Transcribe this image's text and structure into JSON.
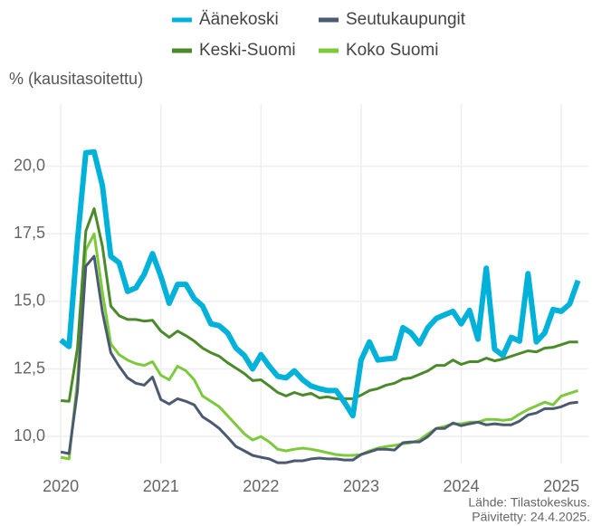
{
  "chart_data": {
    "type": "line",
    "y_label": "% (kausitasoitettu)",
    "source": [
      "Lähde: Tilastokeskus.",
      "Päivitetty: 24.4.2025."
    ],
    "x": [
      2020,
      2020.083,
      2020.167,
      2020.25,
      2020.333,
      2020.417,
      2020.5,
      2020.583,
      2020.667,
      2020.75,
      2020.833,
      2020.917,
      2021,
      2021.083,
      2021.167,
      2021.25,
      2021.333,
      2021.417,
      2021.5,
      2021.583,
      2021.667,
      2021.75,
      2021.833,
      2021.917,
      2022,
      2022.083,
      2022.167,
      2022.25,
      2022.333,
      2022.417,
      2022.5,
      2022.583,
      2022.667,
      2022.75,
      2022.833,
      2022.917,
      2023,
      2023.083,
      2023.167,
      2023.25,
      2023.333,
      2023.417,
      2023.5,
      2023.583,
      2023.667,
      2023.75,
      2023.833,
      2023.917,
      2024,
      2024.083,
      2024.167,
      2024.25,
      2024.333,
      2024.417,
      2024.5,
      2024.583,
      2024.667,
      2024.75,
      2024.833,
      2024.917,
      2025,
      2025.083,
      2025.167
    ],
    "series": [
      {
        "name": "Äänekoski",
        "color": "#00b2d9",
        "values": [
          13.57,
          13.33,
          17.27,
          20.5,
          20.53,
          19.27,
          16.67,
          16.43,
          15.37,
          15.5,
          16.0,
          16.77,
          15.93,
          14.93,
          15.63,
          15.63,
          15.1,
          14.83,
          14.17,
          14.1,
          13.83,
          13.27,
          13.0,
          12.5,
          13.03,
          12.6,
          12.23,
          12.17,
          12.43,
          12.1,
          11.87,
          11.77,
          11.7,
          11.7,
          11.27,
          10.77,
          12.83,
          13.5,
          12.83,
          12.87,
          12.9,
          14.03,
          13.83,
          13.43,
          14.03,
          14.37,
          14.5,
          14.63,
          14.17,
          14.67,
          13.6,
          16.23,
          13.23,
          13.0,
          13.67,
          13.53,
          16.03,
          13.5,
          13.83,
          14.7,
          14.63,
          14.9,
          15.77
        ]
      },
      {
        "name": "Seutukaupungit",
        "color": "#4b5a70",
        "values": [
          9.43,
          9.37,
          11.7,
          16.3,
          16.67,
          14.6,
          13.1,
          12.6,
          12.17,
          11.97,
          11.9,
          12.2,
          11.37,
          11.2,
          11.4,
          11.3,
          11.17,
          10.73,
          10.53,
          10.3,
          9.97,
          9.63,
          9.47,
          9.3,
          9.23,
          9.17,
          9.03,
          9.03,
          9.1,
          9.1,
          9.17,
          9.2,
          9.17,
          9.17,
          9.13,
          9.13,
          9.33,
          9.43,
          9.53,
          9.53,
          9.5,
          9.77,
          9.8,
          9.8,
          10.0,
          10.3,
          10.3,
          10.5,
          10.4,
          10.47,
          10.53,
          10.43,
          10.47,
          10.43,
          10.43,
          10.57,
          10.8,
          10.87,
          11.03,
          11.03,
          11.1,
          11.23,
          11.27
        ]
      },
      {
        "name": "Keski-Suomi",
        "color": "#4a8a2a",
        "values": [
          11.33,
          11.3,
          13.27,
          17.6,
          18.43,
          17.03,
          14.83,
          14.47,
          14.33,
          14.33,
          14.27,
          14.3,
          13.9,
          13.67,
          13.9,
          13.73,
          13.53,
          13.27,
          13.1,
          12.97,
          12.73,
          12.53,
          12.33,
          12.07,
          12.1,
          11.87,
          11.63,
          11.5,
          11.63,
          11.53,
          11.6,
          11.43,
          11.47,
          11.4,
          11.4,
          11.4,
          11.53,
          11.7,
          11.77,
          11.9,
          11.97,
          12.13,
          12.17,
          12.3,
          12.43,
          12.63,
          12.63,
          12.83,
          12.67,
          12.77,
          12.77,
          12.9,
          12.8,
          12.87,
          12.97,
          13.07,
          13.17,
          13.13,
          13.27,
          13.3,
          13.4,
          13.5,
          13.5
        ]
      },
      {
        "name": "Koko Suomi",
        "color": "#7cc93c",
        "values": [
          9.23,
          9.17,
          12.1,
          16.9,
          17.5,
          15.33,
          13.43,
          13.03,
          12.83,
          12.7,
          12.63,
          12.77,
          12.27,
          12.1,
          12.6,
          12.43,
          12.1,
          11.5,
          11.3,
          11.1,
          10.77,
          10.43,
          10.1,
          9.87,
          10.0,
          9.8,
          9.53,
          9.47,
          9.53,
          9.57,
          9.53,
          9.47,
          9.4,
          9.33,
          9.3,
          9.3,
          9.33,
          9.47,
          9.57,
          9.63,
          9.67,
          9.73,
          9.77,
          9.87,
          10.1,
          10.3,
          10.37,
          10.47,
          10.47,
          10.53,
          10.53,
          10.63,
          10.63,
          10.6,
          10.63,
          10.83,
          11.0,
          11.13,
          11.27,
          11.17,
          11.5,
          11.6,
          11.7
        ]
      }
    ],
    "xlim": [
      2019.8,
      2025.27
    ],
    "xticks": [
      2020,
      2021,
      2022,
      2023,
      2024,
      2025
    ],
    "ylim": [
      9,
      22.3
    ],
    "yticks": [
      {
        "value": 10,
        "label": "10,0"
      },
      {
        "value": 12.5,
        "label": "12,5"
      },
      {
        "value": 15,
        "label": "15,0"
      },
      {
        "value": 17.5,
        "label": "17,5"
      },
      {
        "value": 20,
        "label": "20,0"
      }
    ],
    "grid": true
  }
}
